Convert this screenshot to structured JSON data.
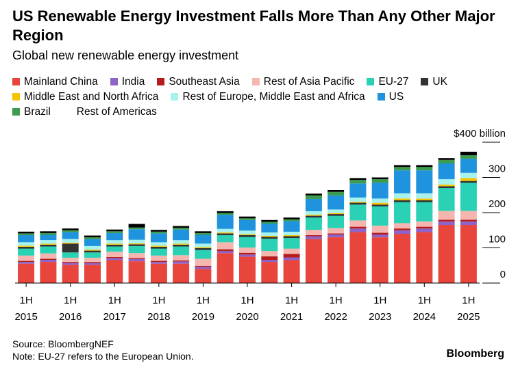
{
  "title": "US Renewable Energy Investment Falls More Than Any Other Major Region",
  "subtitle": "Global new renewable energy investment",
  "source": "Source: BloombergNEF",
  "note": "Note: EU-27 refers to the European Union.",
  "brand": "Bloomberg",
  "chart_data": {
    "type": "bar",
    "stacked": true,
    "title": "US Renewable Energy Investment Falls More Than Any Other Major Region",
    "subtitle": "Global new renewable energy investment",
    "unit_label": "$400 billion",
    "ylim": [
      0,
      400
    ],
    "y_ticks": [
      "0",
      "100",
      "200",
      "300",
      "$400 billion"
    ],
    "y_tick_values": [
      0,
      100,
      200,
      300,
      400
    ],
    "x_tick_labels": [
      {
        "half": "1H",
        "year": "2015"
      },
      {
        "half": "1H",
        "year": "2016"
      },
      {
        "half": "1H",
        "year": "2017"
      },
      {
        "half": "1H",
        "year": "2018"
      },
      {
        "half": "1H",
        "year": "2019"
      },
      {
        "half": "1H",
        "year": "2020"
      },
      {
        "half": "1H",
        "year": "2021"
      },
      {
        "half": "1H",
        "year": "2022"
      },
      {
        "half": "1H",
        "year": "2023"
      },
      {
        "half": "1H",
        "year": "2024"
      },
      {
        "half": "1H",
        "year": "2025"
      }
    ],
    "categories": [
      "1H 2015",
      "2H 2015",
      "1H 2016",
      "2H 2016",
      "1H 2017",
      "2H 2017",
      "1H 2018",
      "2H 2018",
      "1H 2019",
      "2H 2019",
      "1H 2020",
      "2H 2020",
      "1H 2021",
      "2H 2021",
      "1H 2022",
      "2H 2022",
      "1H 2023",
      "2H 2023",
      "1H 2024",
      "2H 2024",
      "1H 2025"
    ],
    "series": [
      {
        "name": "Mainland China",
        "color": "#e8453c",
        "values": [
          55,
          60,
          52,
          52,
          65,
          62,
          55,
          55,
          40,
          85,
          75,
          60,
          65,
          125,
          130,
          145,
          130,
          140,
          145,
          165,
          165
        ]
      },
      {
        "name": "India",
        "color": "#8e63c7",
        "values": [
          5,
          6,
          5,
          5,
          6,
          6,
          5,
          6,
          6,
          6,
          6,
          6,
          8,
          8,
          8,
          10,
          8,
          10,
          10,
          10,
          10
        ]
      },
      {
        "name": "Southeast Asia",
        "color": "#b71c1c",
        "values": [
          3,
          3,
          3,
          3,
          3,
          3,
          3,
          3,
          3,
          5,
          5,
          10,
          10,
          3,
          3,
          5,
          5,
          5,
          5,
          5,
          5
        ]
      },
      {
        "name": "Rest of Asia Pacific",
        "color": "#f4b6ae",
        "values": [
          15,
          15,
          12,
          12,
          15,
          14,
          15,
          15,
          20,
          20,
          15,
          15,
          15,
          15,
          15,
          18,
          20,
          15,
          15,
          25,
          25
        ]
      },
      {
        "name": "EU-27",
        "color": "#2ad1b4",
        "values": [
          20,
          20,
          15,
          15,
          15,
          20,
          20,
          25,
          25,
          20,
          30,
          35,
          30,
          35,
          35,
          45,
          55,
          60,
          55,
          65,
          80
        ]
      },
      {
        "name": "UK",
        "color": "#333333",
        "values": [
          5,
          5,
          25,
          5,
          5,
          5,
          5,
          5,
          5,
          5,
          5,
          5,
          5,
          5,
          5,
          5,
          5,
          5,
          5,
          5,
          5
        ]
      },
      {
        "name": "Middle East and North Africa",
        "color": "#f5c400",
        "values": [
          3,
          3,
          3,
          3,
          3,
          3,
          3,
          3,
          3,
          3,
          3,
          3,
          3,
          3,
          3,
          3,
          5,
          5,
          5,
          5,
          8
        ]
      },
      {
        "name": "Rest of Europe, Middle East and Africa",
        "color": "#a8f2ee",
        "values": [
          10,
          10,
          10,
          10,
          10,
          10,
          10,
          10,
          10,
          10,
          10,
          10,
          10,
          10,
          10,
          12,
          12,
          15,
          15,
          15,
          15
        ]
      },
      {
        "name": "US",
        "color": "#1f93dd",
        "values": [
          20,
          15,
          20,
          20,
          20,
          30,
          25,
          30,
          25,
          40,
          30,
          25,
          30,
          35,
          40,
          40,
          45,
          65,
          65,
          45,
          40
        ]
      },
      {
        "name": "Brazil",
        "color": "#3c9b4e",
        "values": [
          5,
          5,
          5,
          5,
          5,
          5,
          5,
          5,
          5,
          5,
          5,
          5,
          5,
          10,
          10,
          10,
          10,
          10,
          10,
          10,
          10
        ]
      },
      {
        "name": "Rest of Americas",
        "color": "#000000",
        "values": [
          5,
          5,
          5,
          5,
          5,
          10,
          5,
          5,
          5,
          5,
          5,
          5,
          5,
          5,
          5,
          5,
          5,
          5,
          5,
          5,
          10
        ]
      }
    ]
  }
}
